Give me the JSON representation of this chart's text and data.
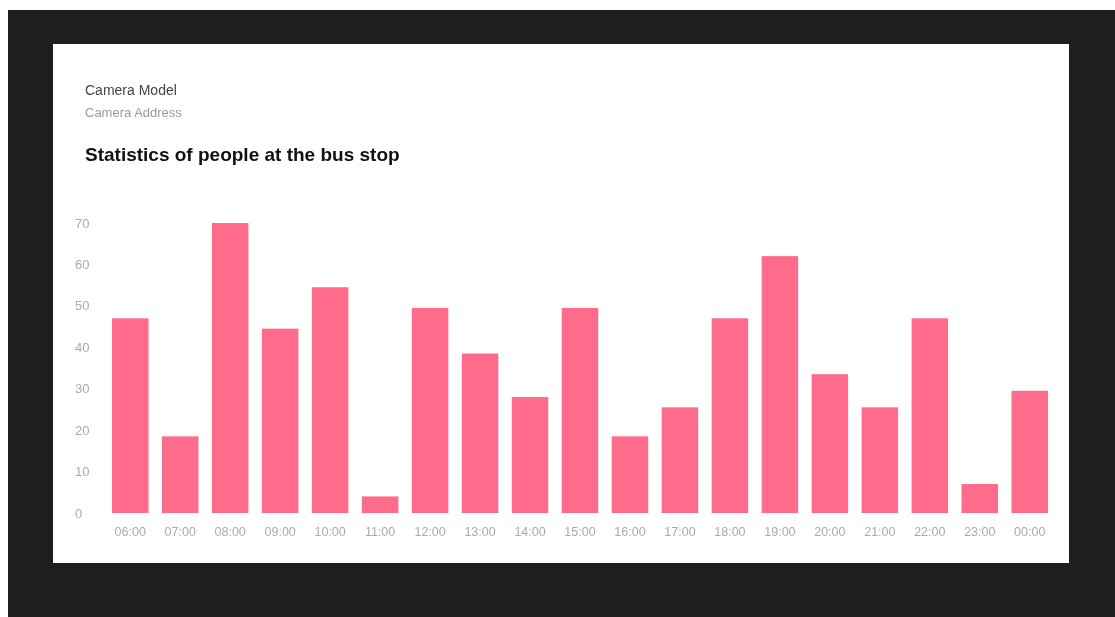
{
  "chart_data": {
    "type": "bar",
    "title": "Statistics of people at the bus stop",
    "annotations": [
      "Camera Model",
      "Camera Address"
    ],
    "categories": [
      "06:00",
      "07:00",
      "08:00",
      "09:00",
      "10:00",
      "11:00",
      "12:00",
      "13:00",
      "14:00",
      "15:00",
      "16:00",
      "17:00",
      "18:00",
      "19:00",
      "20:00",
      "21:00",
      "22:00",
      "23:00",
      "00:00"
    ],
    "values": [
      47,
      18.5,
      70,
      44.5,
      54.5,
      4,
      49.5,
      38.5,
      28,
      49.5,
      18.5,
      25.5,
      47,
      62,
      33.5,
      25.5,
      47,
      7,
      29.5
    ],
    "color": "#ff6b8a",
    "ylim": [
      0,
      70
    ],
    "yticks": [
      0,
      10,
      20,
      30,
      40,
      50,
      60,
      70
    ],
    "grid": false
  }
}
